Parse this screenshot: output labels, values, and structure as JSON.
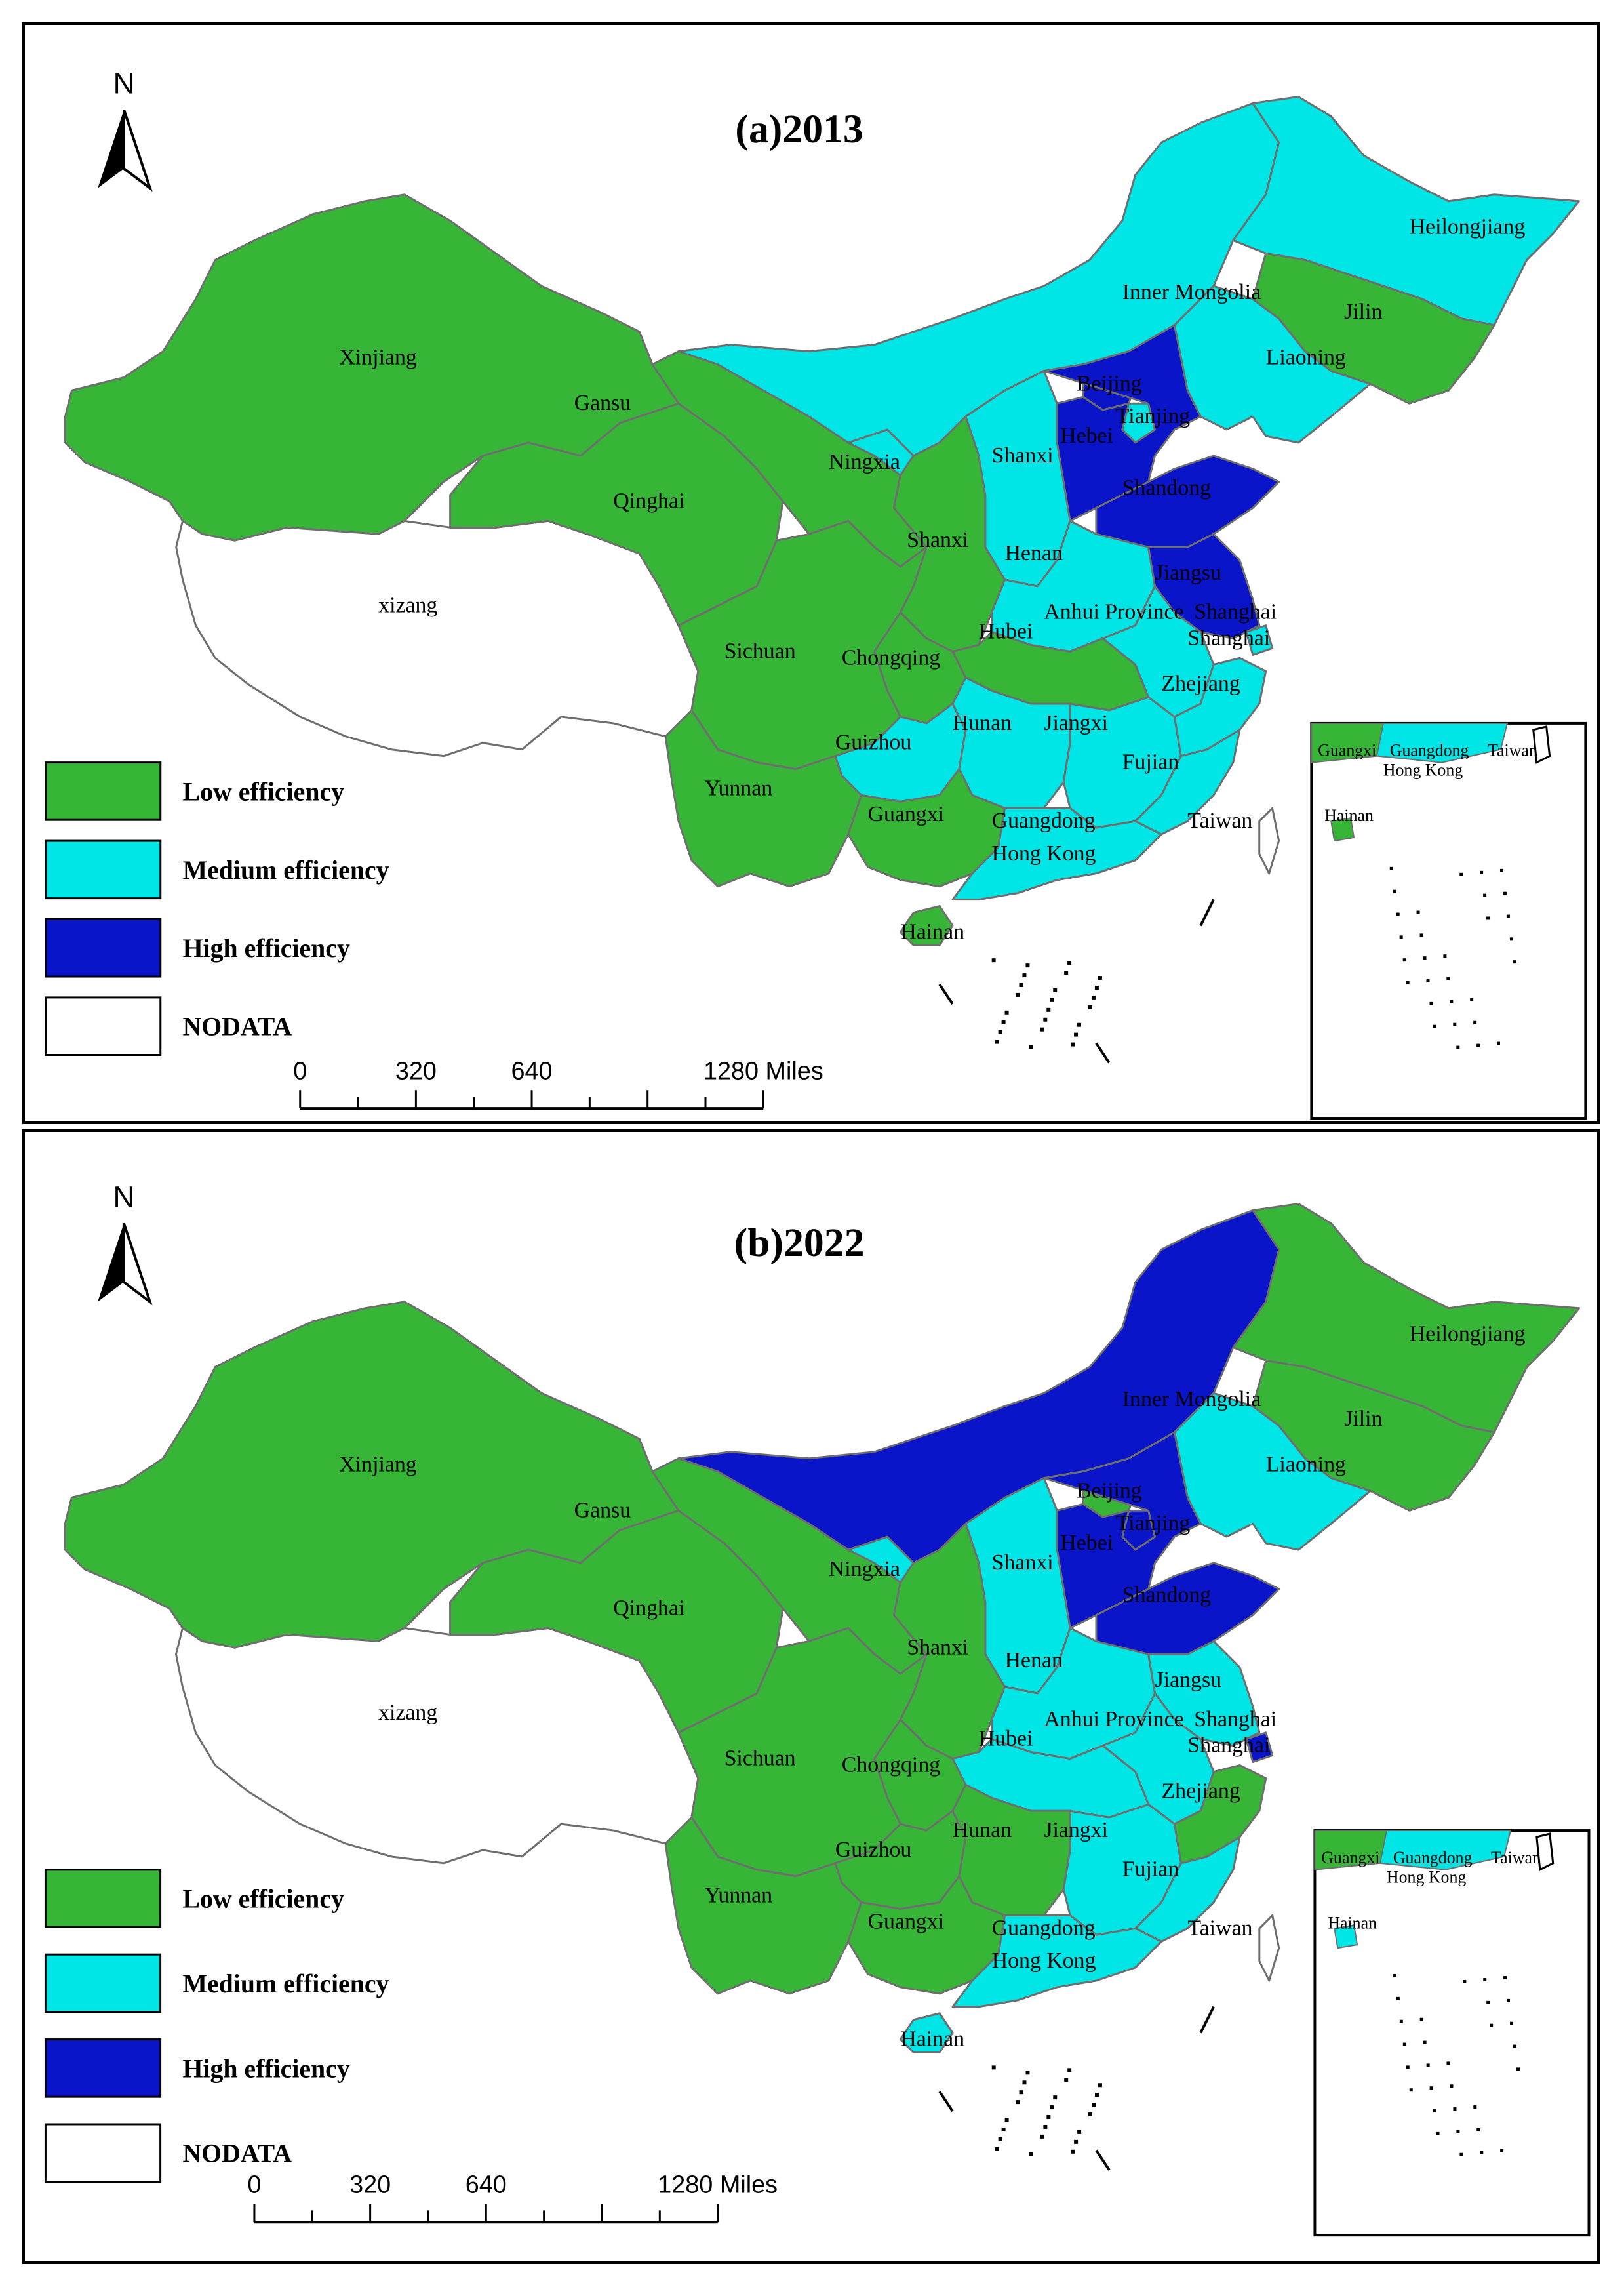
{
  "colors": {
    "low": "#37b537",
    "medium": "#00e6e6",
    "high": "#0a14c8",
    "nodata": "#ffffff",
    "border": "#6e6e6e"
  },
  "north_label": "N",
  "scale": {
    "ticks": [
      "0",
      "320",
      "640",
      "1280 Miles"
    ]
  },
  "panels": [
    {
      "title": "(a)2013",
      "legend": [
        {
          "label": "Low efficiency",
          "level": "low"
        },
        {
          "label": "Medium efficiency",
          "level": "medium"
        },
        {
          "label": "High  efficiency",
          "level": "high"
        },
        {
          "label": "NODATA",
          "level": "nodata"
        }
      ],
      "regions": {
        "xinjiang": "low",
        "xizang": "nodata",
        "qinghai": "low",
        "gansu": "low",
        "ningxia": "medium",
        "inner_mongolia": "medium",
        "heilongjiang": "medium",
        "jilin": "low",
        "liaoning": "medium",
        "beijing": "high",
        "tianjin": "medium",
        "hebei": "high",
        "shanxi": "medium",
        "shaanxi": "low",
        "shandong": "high",
        "henan": "medium",
        "jiangsu": "high",
        "anhui": "medium",
        "shanghai": "medium",
        "hubei": "low",
        "chongqing": "low",
        "sichuan": "low",
        "guizhou": "medium",
        "yunnan": "low",
        "hunan": "medium",
        "jiangxi": "medium",
        "zhejiang": "medium",
        "fujian": "medium",
        "guangxi": "low",
        "guangdong": "medium",
        "hainan": "low",
        "taiwan": "nodata"
      },
      "labels": {
        "xinjiang": "Xinjiang",
        "xizang": "xizang",
        "qinghai": "Qinghai",
        "gansu": "Gansu",
        "ningxia": "Ningxia",
        "inner_mongolia": "Inner Mongolia",
        "heilongjiang": "Heilongjiang",
        "jilin": "Jilin",
        "liaoning": "Liaoning",
        "beijing": "Beijing",
        "tianjin": "Tianjing",
        "hebei": "Hebei",
        "shanxi": "Shanxi",
        "shaanxi": "Shanxi",
        "shandong": "Shandong",
        "henan": "Henan",
        "jiangsu": "Jiangsu",
        "anhui": "Anhui Province",
        "shanghai_a": "Shanghai",
        "shanghai_b": "Shanghai",
        "hubei": "Hubei",
        "chongqing": "Chongqing",
        "sichuan": "Sichuan",
        "guizhou": "Guizhou",
        "yunnan": "Yunnan",
        "hunan": "Hunan",
        "jiangxi": "Jiangxi",
        "zhejiang": "Zhejiang",
        "fujian": "Fujian",
        "guangxi": "Guangxi",
        "guangdong": "Guangdong",
        "hongkong": "Hong Kong",
        "hainan": "Hainan",
        "taiwan": "Taiwan"
      },
      "inset_labels": {
        "guangxi": "Guangxi",
        "guangdong": "Guangdong",
        "hongkong": "Hong Kong",
        "taiwan": "Taiwan",
        "hainan": "Hainan"
      }
    },
    {
      "title": "(b)2022",
      "legend": [
        {
          "label": "Low efficiency",
          "level": "low"
        },
        {
          "label": "Medium  efficiency",
          "level": "medium"
        },
        {
          "label": "High efficiency",
          "level": "high"
        },
        {
          "label": "NODATA",
          "level": "nodata"
        }
      ],
      "regions": {
        "xinjiang": "low",
        "xizang": "nodata",
        "qinghai": "low",
        "gansu": "low",
        "ningxia": "medium",
        "inner_mongolia": "high",
        "heilongjiang": "low",
        "jilin": "low",
        "liaoning": "medium",
        "beijing": "low",
        "tianjin": "high",
        "hebei": "high",
        "shanxi": "medium",
        "shaanxi": "low",
        "shandong": "high",
        "henan": "medium",
        "jiangsu": "medium",
        "anhui": "medium",
        "shanghai": "high",
        "hubei": "medium",
        "chongqing": "low",
        "sichuan": "low",
        "guizhou": "low",
        "yunnan": "low",
        "hunan": "low",
        "jiangxi": "medium",
        "zhejiang": "low",
        "fujian": "medium",
        "guangxi": "low",
        "guangdong": "medium",
        "hainan": "medium",
        "taiwan": "nodata"
      },
      "labels": {
        "xinjiang": "Xinjiang",
        "xizang": "xizang",
        "qinghai": "Qinghai",
        "gansu": "Gansu",
        "ningxia": "Ningxia",
        "inner_mongolia": "Inner Mongolia",
        "heilongjiang": "Heilongjiang",
        "jilin": "Jilin",
        "liaoning": "Liaoning",
        "beijing": "Beijing",
        "tianjin": "Tianjing",
        "hebei": "Hebei",
        "shanxi": "Shanxi",
        "shaanxi": "Shanxi",
        "shandong": "Shandong",
        "henan": "Henan",
        "jiangsu": "Jiangsu",
        "anhui": "Anhui Province",
        "shanghai_a": "Shanghai",
        "shanghai_b": "Shanghai",
        "hubei": "Hubei",
        "chongqing": "Chongqing",
        "sichuan": "Sichuan",
        "guizhou": "Guizhou",
        "yunnan": "Yunnan",
        "hunan": "Hunan",
        "jiangxi": "Jiangxi",
        "zhejiang": "Zhejiang",
        "fujian": "Fujian",
        "guangxi": "Guangxi",
        "guangdong": "Guangdong",
        "hongkong": "Hong Kong",
        "hainan": "Hainan",
        "taiwan": "Taiwan"
      },
      "inset_labels": {
        "guangxi": "Guangxi",
        "guangdong": "Guangdong",
        "hongkong": "Hong Kong",
        "taiwan": "Taiwan",
        "hainan": "Hainan"
      }
    }
  ]
}
